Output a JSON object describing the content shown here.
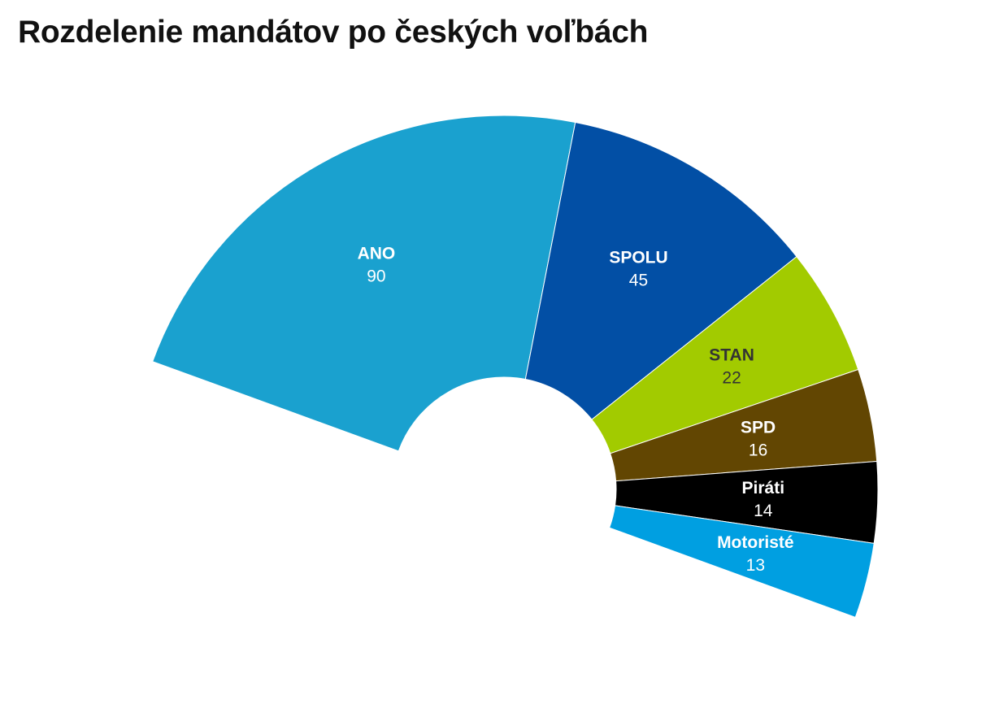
{
  "chart_data": {
    "type": "pie",
    "variant": "half-donut (parliament arc)",
    "title": "Rozdelenie mandátov po českých voľbách",
    "series": [
      {
        "name": "ANO",
        "value": 90,
        "color": "#1aa1cf",
        "label_color": "#ffffff"
      },
      {
        "name": "SPOLU",
        "value": 45,
        "color": "#024fa5",
        "label_color": "#ffffff"
      },
      {
        "name": "STAN",
        "value": 22,
        "color": "#a2cb00",
        "label_color": "#333333"
      },
      {
        "name": "SPD",
        "value": 16,
        "color": "#624602",
        "label_color": "#ffffff"
      },
      {
        "name": "Piráti",
        "value": 14,
        "color": "#000000",
        "label_color": "#ffffff"
      },
      {
        "name": "Motoristé",
        "value": 13,
        "color": "#009fe1",
        "label_color": "#ffffff"
      }
    ]
  }
}
